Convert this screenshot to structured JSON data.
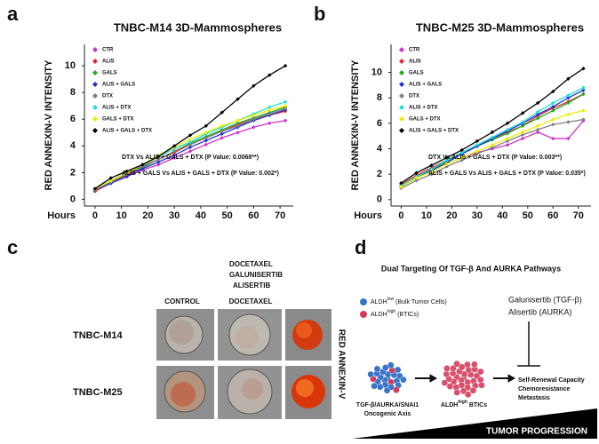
{
  "chart_data": [
    {
      "type": "line",
      "panel": "a",
      "title": "TNBC-M14 3D-Mammospheres",
      "y_label": "RED ANNEXIN-V INTENSITY",
      "x_label": "Hours",
      "x": [
        0,
        6,
        12,
        18,
        24,
        30,
        36,
        42,
        48,
        54,
        60,
        66,
        72
      ],
      "xlim": [
        -4,
        75
      ],
      "xticks": [
        0,
        10,
        20,
        30,
        40,
        50,
        60,
        70
      ],
      "ylim": [
        -0.5,
        11.6
      ],
      "yticks": [
        0,
        2,
        4,
        6,
        8,
        10
      ],
      "annotations": [
        "DTX Vs ALIS + GALS + DTX  (P Value: 0.0068**)",
        "ALIS + GALS Vs ALIS + GALS + DTX (P Value: 0.002*)"
      ],
      "series": [
        {
          "name": "CTR",
          "color": "#cc33cc",
          "values": [
            0.6,
            1.2,
            1.7,
            2.2,
            2.6,
            3.1,
            3.6,
            4.1,
            4.6,
            5.0,
            5.4,
            5.7,
            5.9
          ]
        },
        {
          "name": "ALIS",
          "color": "#e8262a",
          "values": [
            0.6,
            1.3,
            1.8,
            2.4,
            3.0,
            3.5,
            4.1,
            4.6,
            5.1,
            5.6,
            6.0,
            6.3,
            6.6
          ]
        },
        {
          "name": "GALS",
          "color": "#22aa22",
          "values": [
            0.7,
            1.3,
            1.9,
            2.4,
            3.0,
            3.6,
            4.2,
            4.7,
            5.2,
            5.7,
            6.1,
            6.5,
            6.9
          ]
        },
        {
          "name": "ALIS + GALS",
          "color": "#2233cc",
          "values": [
            0.7,
            1.2,
            1.7,
            2.3,
            2.8,
            3.3,
            3.9,
            4.4,
            4.9,
            5.4,
            5.9,
            6.3,
            6.7
          ]
        },
        {
          "name": "DTX",
          "color": "#808080",
          "values": [
            0.7,
            1.3,
            1.9,
            2.5,
            3.0,
            3.6,
            4.1,
            4.6,
            5.1,
            5.5,
            6.0,
            6.4,
            6.8
          ]
        },
        {
          "name": "ALIS + DTX",
          "color": "#22dddd",
          "values": [
            0.8,
            1.4,
            2.0,
            2.6,
            3.2,
            3.8,
            4.3,
            4.9,
            5.4,
            5.9,
            6.4,
            6.9,
            7.3
          ]
        },
        {
          "name": "GALS + DTX",
          "color": "#eeee00",
          "values": [
            0.8,
            1.4,
            2.0,
            2.6,
            3.3,
            3.9,
            4.5,
            5.0,
            5.5,
            5.9,
            6.3,
            6.7,
            7.0
          ]
        },
        {
          "name": "ALIS + GALS + DTX",
          "color": "#000000",
          "values": [
            0.8,
            1.6,
            2.1,
            2.6,
            3.2,
            4.0,
            4.8,
            5.5,
            6.5,
            7.5,
            8.5,
            9.3,
            10.0
          ]
        }
      ]
    },
    {
      "type": "line",
      "panel": "b",
      "title": "TNBC-M25 3D-Mammospheres",
      "y_label": "RED ANNEXIN-V INTENSITY",
      "x_label": "Hours",
      "x": [
        0,
        6,
        12,
        18,
        24,
        30,
        36,
        42,
        48,
        54,
        60,
        66,
        72
      ],
      "xlim": [
        -4,
        75
      ],
      "xticks": [
        0,
        10,
        20,
        30,
        40,
        50,
        60,
        70
      ],
      "ylim": [
        -0.5,
        12.2
      ],
      "yticks": [
        0,
        2,
        4,
        6,
        8,
        10
      ],
      "annotations": [
        "DTX Vs ALIS + GALS + DTX  (P Value: 0.003**)",
        "ALIS + GALS Vs ALIS + GALS + DTX (P Value: 0.035*)"
      ],
      "series": [
        {
          "name": "CTR",
          "color": "#cc33cc",
          "values": [
            1.0,
            1.7,
            2.3,
            2.8,
            3.3,
            3.7,
            4.0,
            4.3,
            4.8,
            5.3,
            4.8,
            4.8,
            6.2
          ]
        },
        {
          "name": "ALIS",
          "color": "#e8262a",
          "values": [
            1.2,
            1.9,
            2.5,
            3.1,
            3.6,
            4.2,
            4.8,
            5.3,
            5.8,
            6.6,
            7.2,
            7.7,
            8.3
          ]
        },
        {
          "name": "GALS",
          "color": "#22aa22",
          "values": [
            1.0,
            1.8,
            2.4,
            3.0,
            3.6,
            4.2,
            4.7,
            5.2,
            5.8,
            6.4,
            7.0,
            7.6,
            8.3
          ]
        },
        {
          "name": "ALIS + GALS",
          "color": "#2233cc",
          "values": [
            1.0,
            1.7,
            2.3,
            2.9,
            3.6,
            4.2,
            4.8,
            5.4,
            6.0,
            6.7,
            7.3,
            8.0,
            8.6
          ]
        },
        {
          "name": "DTX",
          "color": "#808080",
          "values": [
            0.9,
            1.5,
            2.0,
            2.6,
            3.1,
            3.6,
            4.1,
            4.6,
            5.1,
            5.5,
            5.9,
            6.1,
            6.3
          ]
        },
        {
          "name": "ALIS + DTX",
          "color": "#22dddd",
          "values": [
            1.1,
            1.8,
            2.4,
            3.1,
            3.7,
            4.3,
            4.9,
            5.5,
            6.1,
            6.9,
            7.6,
            8.2,
            8.8
          ]
        },
        {
          "name": "GALS + DTX",
          "color": "#eeee00",
          "values": [
            1.0,
            1.7,
            2.2,
            2.8,
            3.3,
            3.8,
            4.3,
            4.8,
            5.3,
            5.8,
            6.3,
            6.7,
            7.0
          ]
        },
        {
          "name": "ALIS + GALS + DTX",
          "color": "#000000",
          "values": [
            1.3,
            2.1,
            2.7,
            3.3,
            3.9,
            4.6,
            5.3,
            6.0,
            6.8,
            7.6,
            8.5,
            9.5,
            10.3
          ]
        }
      ]
    }
  ],
  "panel_c": {
    "label": "c",
    "columns": [
      "CONTROL",
      "DOCETAXEL",
      [
        "DOCETAXEL",
        "GALUNISERTIB",
        "ALISERTIB"
      ]
    ],
    "rows": [
      "TNBC-M14",
      "TNBC-M25"
    ],
    "side_label": "RED ANNEXIN-V"
  },
  "panel_d": {
    "label": "d",
    "title": "Dual Targeting Of TGF-β And AURKA Pathways",
    "legend": [
      {
        "base": "ALDH",
        "sup": "low",
        "rest": " (Bulk Tumor Cells)"
      },
      {
        "base": "ALDH",
        "sup": "high",
        "rest": " (BTICs)"
      }
    ],
    "drugs": [
      "Galunisertib (TGF-β)",
      "Alisertib (AURKA)"
    ],
    "outcomes": [
      "Self-Renewal Capacity",
      "Chemoresistance",
      "Metastasis"
    ],
    "axis_label": [
      "TGF-β/AURKA/SNAI1",
      "Oncogenic Axis"
    ],
    "btic_label": {
      "base": "ALDH",
      "sup": "high",
      "rest": " BTICs"
    },
    "progression": "TUMOR PROGRESSION"
  }
}
